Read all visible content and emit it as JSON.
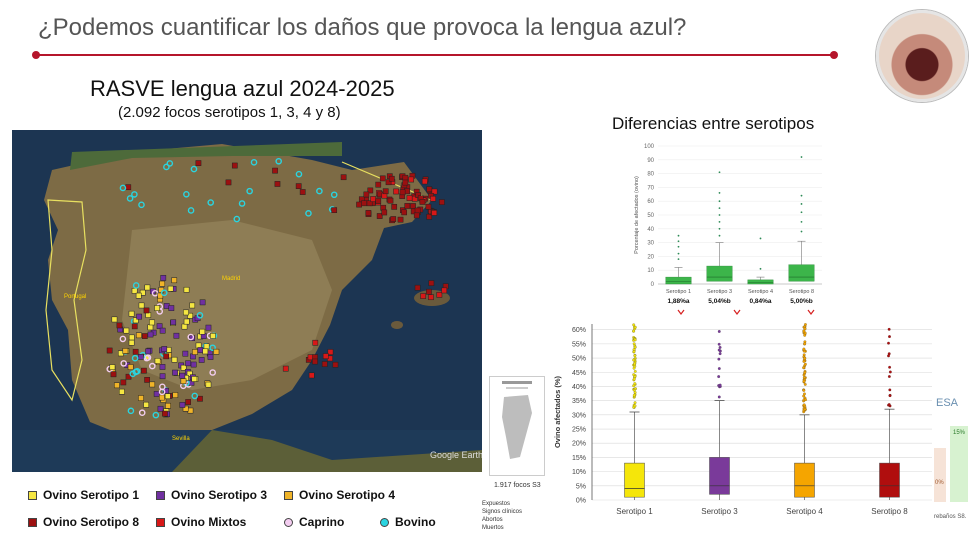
{
  "slide": {
    "title": "¿Podemos cuantificar los daños que provoca la lengua azul?",
    "accent": "#b5152b"
  },
  "map": {
    "title": "RASVE lengua azul 2024-2025",
    "subtitle": "(2.092 focos serotipos 1, 3, 4 y 8)",
    "watermark": "Google Earth",
    "labels": [
      "Portugal",
      "Madrid",
      "Sevilla"
    ],
    "legend": [
      {
        "label": "Ovino Serotipo 1",
        "color": "#f5e642",
        "shape": "square"
      },
      {
        "label": "Ovino Serotipo 3",
        "color": "#7030a0",
        "shape": "square"
      },
      {
        "label": "Ovino Serotipo 4",
        "color": "#f0b429",
        "shape": "square"
      },
      {
        "label": "Ovino Serotipo 8",
        "color": "#9c1010",
        "shape": "square"
      },
      {
        "label": "Ovino Mixtos",
        "color": "#d81818",
        "shape": "square"
      },
      {
        "label": "Caprino",
        "color": "#f3cdf0",
        "shape": "circle"
      },
      {
        "label": "Bovino",
        "color": "#2ad4e0",
        "shape": "circle"
      }
    ]
  },
  "thumbnail": {
    "caption": "1.917 focos S3",
    "notes": [
      "Expuestos",
      "Signos clínicos",
      "Abortos",
      "Muertos"
    ]
  },
  "side_fragment": {
    "title": "ESA",
    "values": [
      "15%",
      "0%"
    ],
    "footer": "rebaños S8."
  },
  "chart_data": [
    {
      "type": "box",
      "title": "Diferencias entre serotipos",
      "ylabel": "Porcentaje de afectados (ovino)",
      "ylim": [
        0,
        100
      ],
      "yticks": [
        0,
        10,
        20,
        30,
        40,
        50,
        60,
        70,
        80,
        90,
        100
      ],
      "categories": [
        "Serotipo 1",
        "Serotipo 3",
        "Serotipo 4",
        "Serotipo 8"
      ],
      "box_color": "#3cb54a",
      "boxes": [
        {
          "q1": 0,
          "median": 2,
          "q3": 5,
          "whisker_max": 12,
          "outliers": [
            18,
            22,
            27,
            31,
            35
          ]
        },
        {
          "q1": 2,
          "median": 5,
          "q3": 13,
          "whisker_max": 30,
          "outliers": [
            35,
            40,
            45,
            50,
            55,
            60,
            66,
            81
          ]
        },
        {
          "q1": 0,
          "median": 1,
          "q3": 3,
          "whisker_max": 5,
          "outliers": [
            11,
            33
          ]
        },
        {
          "q1": 2,
          "median": 5,
          "q3": 14,
          "whisker_max": 31,
          "outliers": [
            38,
            45,
            52,
            58,
            64,
            92
          ]
        }
      ],
      "annotations": [
        "1,88%a",
        "5,04%b",
        "0,84%a",
        "5,00%b"
      ]
    },
    {
      "type": "box",
      "ylabel": "Ovino afectados (%)",
      "ylim": [
        0,
        62
      ],
      "yticks": [
        "0%",
        "5%",
        "10%",
        "15%",
        "20%",
        "25%",
        "30%",
        "35%",
        "40%",
        "45%",
        "50%",
        "55%",
        "60%"
      ],
      "categories": [
        "Serotipo 1",
        "Serotipo 3",
        "Serotipo 4",
        "Serotipo 8"
      ],
      "colors": [
        "#f5e60a",
        "#7a3a9a",
        "#f5a500",
        "#b00e0e"
      ],
      "boxes": [
        {
          "q1": 1,
          "median": 4,
          "q3": 13,
          "whisker_max": 31
        },
        {
          "q1": 2,
          "median": 5,
          "q3": 15,
          "whisker_max": 35
        },
        {
          "q1": 1,
          "median": 5,
          "q3": 13,
          "whisker_max": 30
        },
        {
          "q1": 1,
          "median": 5,
          "q3": 13,
          "whisker_max": 32
        }
      ]
    }
  ]
}
